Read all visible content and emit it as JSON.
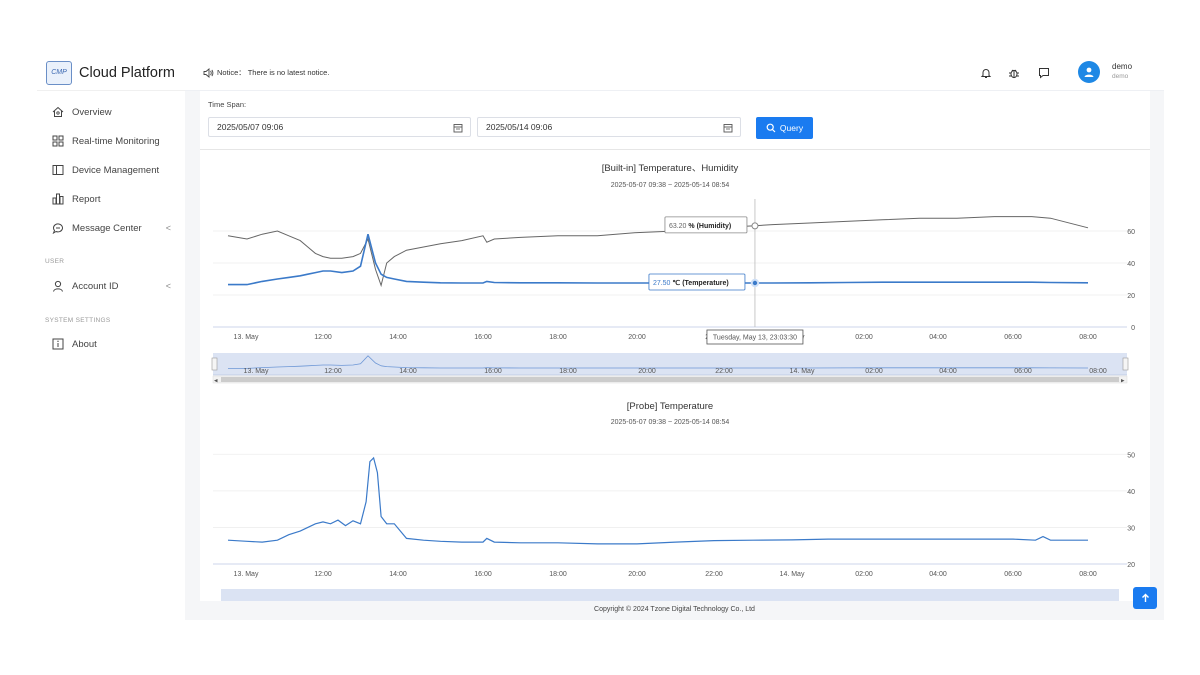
{
  "brand": {
    "name": "Cloud Platform",
    "logo_text": "CMP"
  },
  "sidebar": {
    "items": [
      {
        "label": "Overview",
        "icon": "home-icon"
      },
      {
        "label": "Real-time Monitoring",
        "icon": "grid-icon"
      },
      {
        "label": "Device Management",
        "icon": "device-icon"
      },
      {
        "label": "Report",
        "icon": "report-icon"
      },
      {
        "label": "Message Center",
        "icon": "message-icon",
        "chevron": "<"
      }
    ],
    "section_user": "USER",
    "user_items": [
      {
        "label": "Account ID",
        "icon": "user-icon",
        "chevron": "<"
      }
    ],
    "section_system": "SYSTEM SETTINGS",
    "system_items": [
      {
        "label": "About",
        "icon": "info-icon"
      }
    ]
  },
  "header": {
    "notice": "Notice： There is no latest notice.",
    "user_name": "demo",
    "user_sub": "demo"
  },
  "filters": {
    "label": "Time Span:",
    "start": "2025/05/07 09:06",
    "end": "2025/05/14 09:06",
    "query_label": "Query"
  },
  "chart_data": [
    {
      "type": "line",
      "title": "[Built-in] Temperature、Humidity",
      "subtitle": "2025-05-07 09:38 ~ 2025-05-14 08:54",
      "x_ticks": [
        "13. May",
        "12:00",
        "14:00",
        "16:00",
        "18:00",
        "20:00",
        "22:00",
        "14. May",
        "02:00",
        "04:00",
        "06:00",
        "08:00"
      ],
      "y_ticks": [
        "0",
        "20",
        "40",
        "60"
      ],
      "ylim": [
        0,
        80
      ],
      "series": [
        {
          "name": "Humidity",
          "unit": "%",
          "color": "#666666",
          "x": [
            9.5,
            10.0,
            10.4,
            10.8,
            11.1,
            11.4,
            11.6,
            11.8,
            12.0,
            12.2,
            12.5,
            12.8,
            13.0,
            13.2,
            13.4,
            13.55,
            13.7,
            13.9,
            14.2,
            14.6,
            15.0,
            15.5,
            16.0,
            16.1,
            16.3,
            17.0,
            18.0,
            19.0,
            20.0,
            21.0,
            22.0,
            23.0,
            23.5,
            24.5,
            25.5,
            26.5,
            27.5,
            28.5,
            29.5,
            30.5,
            31.0,
            32.0
          ],
          "values": [
            57,
            55,
            58,
            60,
            57,
            54,
            50,
            46,
            44,
            43,
            43,
            44,
            46,
            55,
            36,
            26,
            40,
            44,
            48,
            50,
            52,
            54,
            57,
            53,
            55,
            56,
            57,
            57,
            59,
            60,
            62,
            63.2,
            64,
            65,
            66,
            67,
            68,
            68,
            69,
            69,
            68,
            62
          ]
        },
        {
          "name": "Temperature",
          "unit": "℃",
          "color": "#3b7ac9",
          "x": [
            9.5,
            10.0,
            10.4,
            10.8,
            11.1,
            11.4,
            11.6,
            11.8,
            12.0,
            12.2,
            12.5,
            12.8,
            13.0,
            13.2,
            13.4,
            13.55,
            13.7,
            13.9,
            14.2,
            14.6,
            15.0,
            15.5,
            16.0,
            16.1,
            16.3,
            17.0,
            18.0,
            19.0,
            20.0,
            21.0,
            22.0,
            23.0,
            23.5,
            24.5,
            25.5,
            26.5,
            27.5,
            28.5,
            29.5,
            30.5,
            31.0,
            32.0
          ],
          "values": [
            26.5,
            26.5,
            28.5,
            30,
            31,
            32,
            33,
            34,
            35,
            35,
            34,
            35,
            38,
            58,
            40,
            33,
            31,
            30,
            28.5,
            28,
            27.6,
            27.5,
            27.5,
            28.5,
            27.8,
            27.6,
            27.6,
            27.5,
            27.5,
            27.5,
            27.5,
            27.5,
            27.5,
            27.6,
            27.8,
            28.0,
            28.0,
            28.0,
            28.0,
            28.0,
            27.8,
            27.6
          ]
        }
      ],
      "tooltip": {
        "header": "Tuesday, May 13, 23:03:30",
        "humidity_value": "63.20",
        "humidity_label": "% (Humidity)",
        "temperature_value": "27.50",
        "temperature_label": "℃ (Temperature)"
      },
      "navigator": {
        "ticks": [
          "13. May",
          "12:00",
          "14:00",
          "16:00",
          "18:00",
          "20:00",
          "22:00",
          "14. May",
          "02:00",
          "04:00",
          "06:00",
          "08:00"
        ]
      },
      "legend": "none",
      "grid": true
    },
    {
      "type": "line",
      "title": "[Probe] Temperature",
      "subtitle": "2025-05-07 09:38 ~ 2025-05-14 08:54",
      "x_ticks": [
        "13. May",
        "12:00",
        "14:00",
        "16:00",
        "18:00",
        "20:00",
        "22:00",
        "14. May",
        "02:00",
        "04:00",
        "06:00",
        "08:00"
      ],
      "y_ticks": [
        "20",
        "30",
        "40",
        "50"
      ],
      "ylim": [
        20,
        55
      ],
      "series": [
        {
          "name": "Temperature",
          "color": "#3b7ac9",
          "x": [
            9.5,
            10.0,
            10.4,
            10.8,
            11.1,
            11.4,
            11.6,
            11.8,
            12.0,
            12.2,
            12.4,
            12.6,
            12.8,
            13.0,
            13.15,
            13.25,
            13.35,
            13.45,
            13.55,
            13.7,
            13.9,
            14.2,
            14.6,
            15.0,
            15.5,
            16.0,
            16.1,
            16.3,
            17.0,
            18.0,
            19.0,
            20.0,
            21.0,
            22.0,
            23.0,
            24.0,
            25.0,
            26.0,
            27.0,
            28.0,
            29.0,
            30.0,
            30.6,
            30.8,
            31.0,
            32.0
          ],
          "values": [
            26.5,
            26.2,
            26,
            26.5,
            28,
            29,
            30,
            31,
            31.5,
            31,
            32,
            30.5,
            31.8,
            31,
            37,
            48,
            49,
            45,
            33,
            31,
            31,
            27,
            26.5,
            26.2,
            26,
            26,
            27,
            26,
            25.8,
            25.8,
            25.5,
            25.5,
            26,
            26.4,
            26.5,
            26.6,
            26.8,
            26.8,
            26.8,
            26.8,
            26.8,
            26.8,
            26.5,
            27.5,
            26.5,
            26.5
          ]
        }
      ],
      "legend": "none",
      "grid": true
    }
  ],
  "footer": {
    "copyright": "Copyright © 2024 Tzone Digital Technology Co., Ltd"
  },
  "colors": {
    "accent": "#1a7bf0",
    "temp_line": "#3b7ac9",
    "humidity_line": "#666666"
  }
}
